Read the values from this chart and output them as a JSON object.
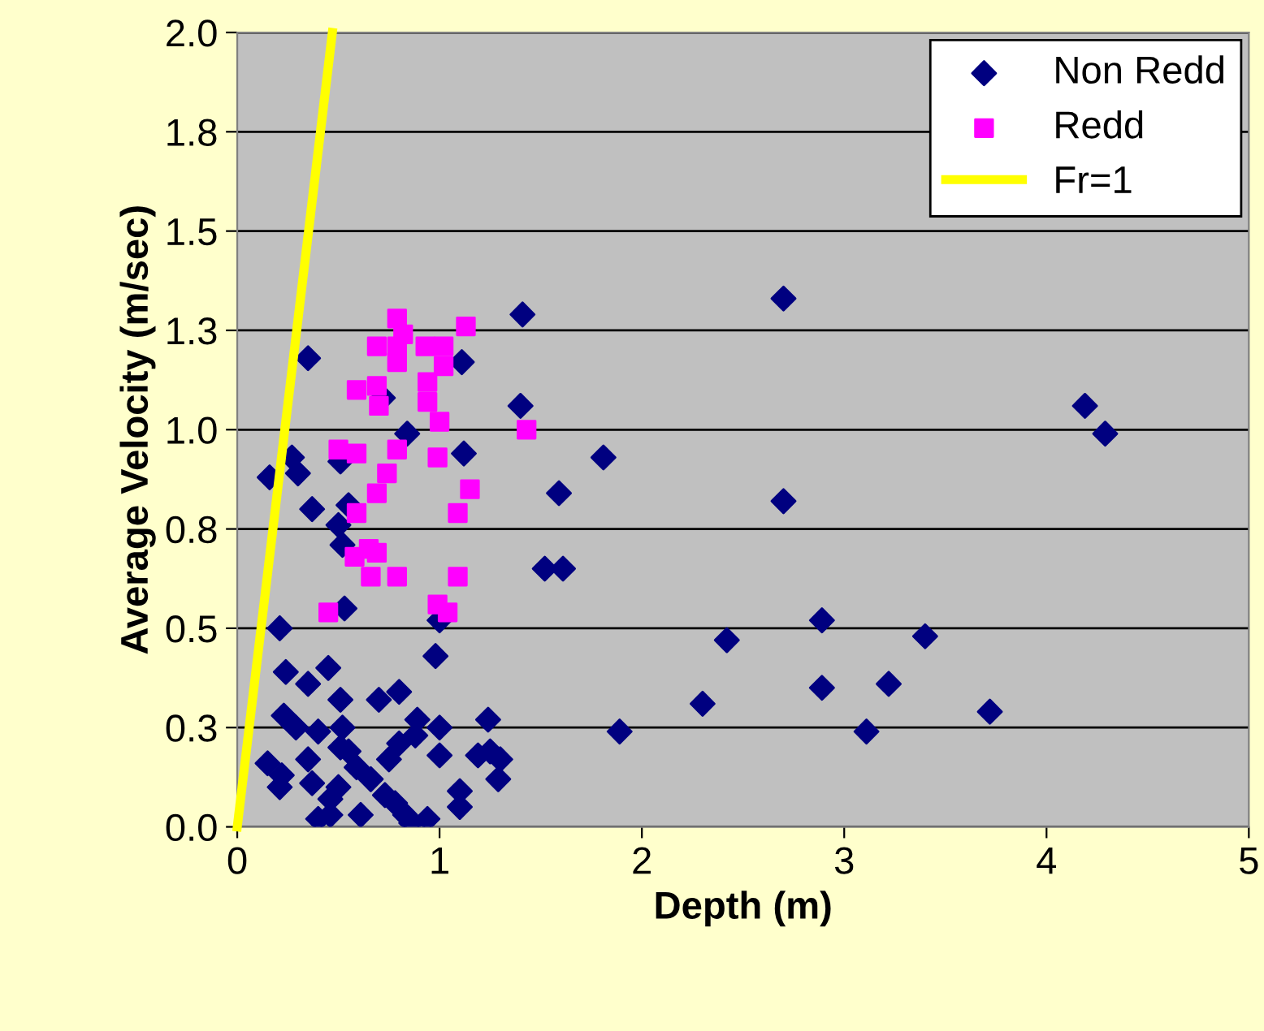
{
  "chart_data": {
    "type": "scatter",
    "xlabel": "Depth (m)",
    "ylabel": "Average Velocity (m/sec)",
    "xlim": [
      0,
      5
    ],
    "ylim": [
      0,
      2
    ],
    "xticks": [
      0,
      1,
      2,
      3,
      4,
      5
    ],
    "yticks": [
      {
        "value": 0,
        "label": "0.0"
      },
      {
        "value": 0.25,
        "label": "0.3"
      },
      {
        "value": 0.5,
        "label": "0.5"
      },
      {
        "value": 0.75,
        "label": "0.8"
      },
      {
        "value": 1.0,
        "label": "1.0"
      },
      {
        "value": 1.25,
        "label": "1.3"
      },
      {
        "value": 1.5,
        "label": "1.5"
      },
      {
        "value": 1.75,
        "label": "1.8"
      },
      {
        "value": 2.0,
        "label": "2.0"
      }
    ],
    "grid": "y",
    "legend": "top right",
    "series": [
      {
        "name": "Non Redd",
        "color": "#000080",
        "marker": "diamond",
        "x": [
          1.41,
          2.7,
          1.4,
          4.19,
          4.29,
          1.81,
          1.59,
          2.7,
          1.52,
          1.61,
          2.89,
          2.42,
          3.4,
          2.89,
          3.22,
          2.3,
          3.72,
          1.89,
          3.11,
          0.35,
          1.11,
          0.72,
          0.84,
          1.12,
          0.27,
          0.3,
          0.16,
          0.51,
          0.37,
          0.55,
          0.5,
          0.52,
          0.53,
          0.21,
          1.0,
          0.98,
          0.24,
          0.45,
          0.35,
          0.51,
          0.7,
          0.8,
          0.23,
          0.29,
          0.4,
          0.52,
          0.89,
          1.0,
          1.24,
          0.88,
          0.51,
          0.55,
          0.35,
          0.8,
          0.75,
          1.0,
          1.19,
          1.25,
          1.3,
          0.15,
          0.22,
          0.21,
          0.37,
          0.59,
          0.66,
          1.29,
          0.5,
          1.1,
          0.73,
          0.46,
          0.78,
          1.1,
          0.61,
          0.46,
          0.4,
          0.83,
          0.86,
          0.94
        ],
        "values": [
          1.29,
          1.33,
          1.06,
          1.06,
          0.99,
          0.93,
          0.84,
          0.82,
          0.65,
          0.65,
          0.52,
          0.47,
          0.48,
          0.35,
          0.36,
          0.31,
          0.29,
          0.24,
          0.24,
          1.18,
          1.17,
          1.08,
          0.99,
          0.94,
          0.93,
          0.89,
          0.88,
          0.92,
          0.8,
          0.81,
          0.76,
          0.71,
          0.55,
          0.5,
          0.52,
          0.43,
          0.39,
          0.4,
          0.36,
          0.32,
          0.32,
          0.34,
          0.28,
          0.25,
          0.24,
          0.25,
          0.27,
          0.25,
          0.27,
          0.23,
          0.2,
          0.19,
          0.17,
          0.21,
          0.17,
          0.18,
          0.18,
          0.19,
          0.17,
          0.16,
          0.13,
          0.1,
          0.11,
          0.15,
          0.12,
          0.12,
          0.1,
          0.09,
          0.08,
          0.07,
          0.06,
          0.05,
          0.03,
          0.03,
          0.02,
          0.03,
          0.01,
          0.02
        ]
      },
      {
        "name": "Redd",
        "color": "#ff00ff",
        "marker": "square",
        "x": [
          0.79,
          1.13,
          0.82,
          0.69,
          0.79,
          0.93,
          1.02,
          0.79,
          1.02,
          0.59,
          0.69,
          0.94,
          0.7,
          0.94,
          1.0,
          1.43,
          0.5,
          0.59,
          0.79,
          0.99,
          0.74,
          0.69,
          1.15,
          0.59,
          1.09,
          0.58,
          0.65,
          0.69,
          0.66,
          0.79,
          1.09,
          0.45,
          0.99,
          1.04
        ],
        "values": [
          1.28,
          1.26,
          1.24,
          1.21,
          1.21,
          1.21,
          1.21,
          1.17,
          1.16,
          1.1,
          1.11,
          1.12,
          1.06,
          1.07,
          1.02,
          1.0,
          0.95,
          0.94,
          0.95,
          0.93,
          0.89,
          0.84,
          0.85,
          0.79,
          0.79,
          0.68,
          0.7,
          0.69,
          0.63,
          0.63,
          0.63,
          0.54,
          0.56,
          0.54
        ]
      },
      {
        "name": "Fr=1",
        "type": "line",
        "color": "#ffff00",
        "marker": "none",
        "line_style": "solid",
        "x": [
          0,
          0.47
        ],
        "values": [
          0,
          2.0
        ]
      }
    ]
  }
}
